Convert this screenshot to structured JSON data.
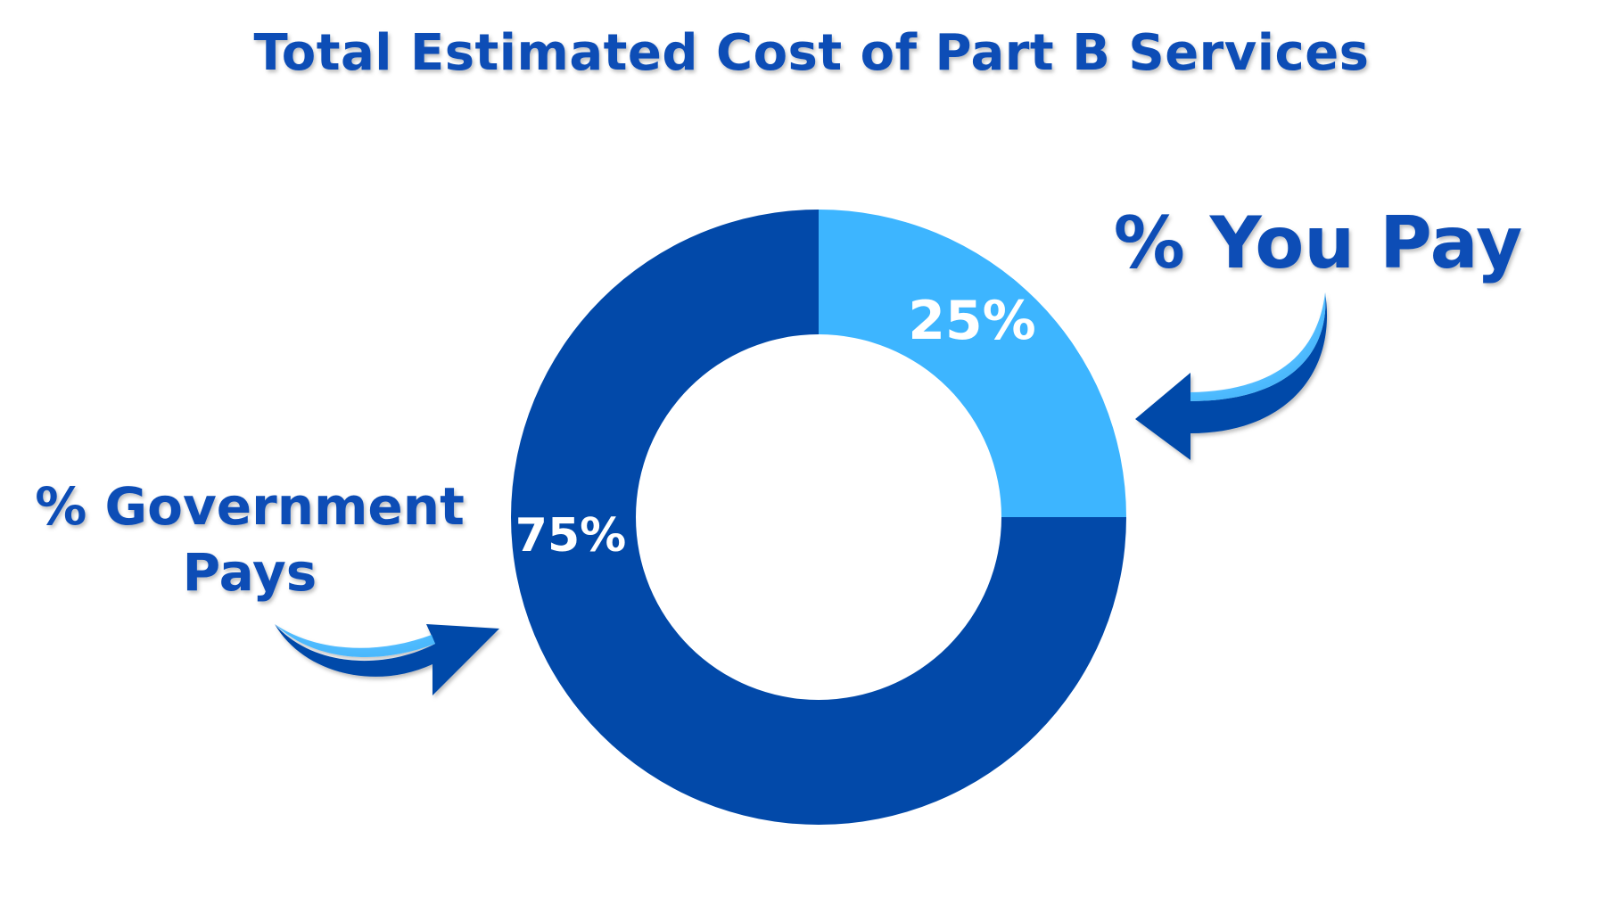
{
  "chart_data": {
    "type": "pie",
    "title": "Total Estimated Cost of Part B Services",
    "variant": "donut",
    "slices": [
      {
        "label": "% You Pay",
        "value": 25,
        "value_label": "25%",
        "color": "#3db5ff"
      },
      {
        "label": "% Government Pays",
        "label_lines": [
          "% Government",
          "Pays"
        ],
        "value": 75,
        "value_label": "75%",
        "color": "#0249a9"
      }
    ]
  },
  "colors": {
    "title": "#0c4db6",
    "labels": "#0c4db6",
    "arrow": "#0249a9",
    "arrow_highlight": "#3db5ff",
    "value_text": "#ffffff",
    "background": "#ffffff"
  },
  "icons": {
    "you_pay_arrow": "curved-arrow-left-icon",
    "government_arrow": "curved-arrow-right-icon"
  }
}
